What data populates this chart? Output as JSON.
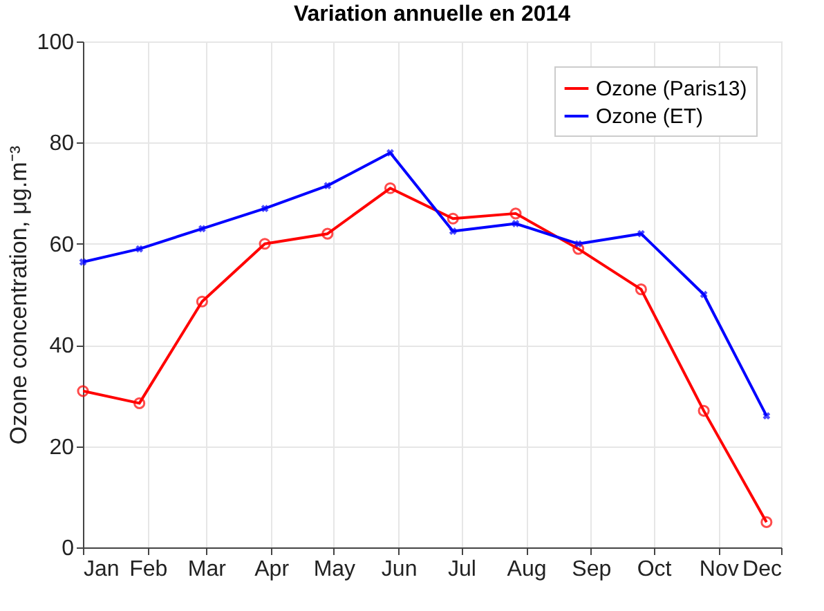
{
  "chart_data": {
    "type": "line",
    "title": "Variation annuelle en 2014",
    "ylabel": "Ozone concentration, μg.m⁻³",
    "xlim": [
      "2014-01-01",
      "2014-12-01"
    ],
    "xticks": [
      {
        "value": "2014-01-01",
        "label": "Jan"
      },
      {
        "value": "2014-02-01",
        "label": "Feb"
      },
      {
        "value": "2014-03-01",
        "label": "Mar"
      },
      {
        "value": "2014-04-01",
        "label": "Apr"
      },
      {
        "value": "2014-05-01",
        "label": "May"
      },
      {
        "value": "2014-06-01",
        "label": "Jun"
      },
      {
        "value": "2014-07-01",
        "label": "Jul"
      },
      {
        "value": "2014-08-01",
        "label": "Aug"
      },
      {
        "value": "2014-09-01",
        "label": "Sep"
      },
      {
        "value": "2014-10-01",
        "label": "Oct"
      },
      {
        "value": "2014-11-01",
        "label": "Nov"
      },
      {
        "value": "2014-12-01",
        "label": "Dec"
      }
    ],
    "ylim": [
      0,
      100
    ],
    "yticks": [
      0,
      20,
      40,
      60,
      80,
      100
    ],
    "grid": true,
    "legend": "top right",
    "line_style": "solid",
    "x": [
      "2014-01-01",
      "2014-01-28",
      "2014-02-27",
      "2014-03-29",
      "2014-04-28",
      "2014-05-28",
      "2014-06-27",
      "2014-07-27",
      "2014-08-26",
      "2014-09-25",
      "2014-10-25",
      "2014-11-24"
    ],
    "series": [
      {
        "name": "Ozone (Paris13)",
        "color": "#ff0000",
        "marker": "circle",
        "values": [
          30.9,
          28.5,
          48.6,
          60,
          62,
          71,
          65,
          66,
          59,
          51,
          27,
          5
        ]
      },
      {
        "name": "Ozone (ET)",
        "color": "#0000ff",
        "marker": "cross",
        "values": [
          56.4,
          59,
          63,
          67,
          71.5,
          78,
          62.5,
          64,
          60,
          62,
          50,
          26
        ]
      }
    ]
  }
}
